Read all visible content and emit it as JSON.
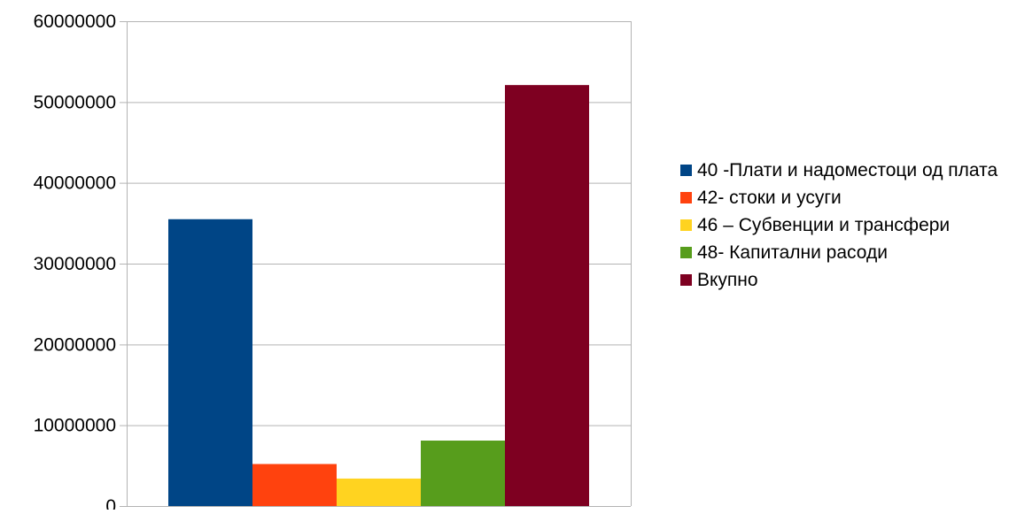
{
  "chart_data": {
    "type": "bar",
    "title": "",
    "xlabel": "",
    "ylabel": "",
    "ylim": [
      0,
      60000000
    ],
    "yticks": [
      0,
      10000000,
      20000000,
      30000000,
      40000000,
      50000000,
      60000000
    ],
    "ytick_labels": [
      "0",
      "10000000",
      "20000000",
      "30000000",
      "40000000",
      "50000000",
      "60000000"
    ],
    "grid": true,
    "legend_position": "right",
    "series": [
      {
        "name": "40 -Плати и надоместоци од плата",
        "value": 35500000,
        "color": "#004586"
      },
      {
        "name": "42- стоки и усуги",
        "value": 5200000,
        "color": "#ff420e"
      },
      {
        "name": "46 – Субвенции и трансфери",
        "value": 3400000,
        "color": "#ffd320"
      },
      {
        "name": "48- Капитални расоди",
        "value": 8100000,
        "color": "#579d1c"
      },
      {
        "name": "Вкупно",
        "value": 52100000,
        "color": "#7e0021"
      }
    ]
  }
}
